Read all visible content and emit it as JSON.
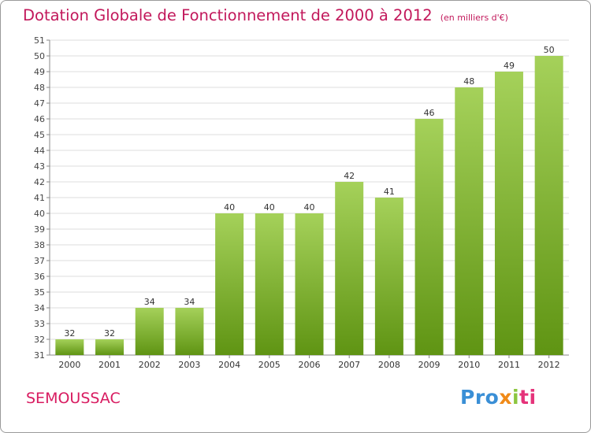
{
  "chart_data": {
    "type": "bar",
    "title": "Dotation Globale de Fonctionnement de 2000 à 2012",
    "unit_note": "(en milliers d'€)",
    "categories": [
      "2000",
      "2001",
      "2002",
      "2003",
      "2004",
      "2005",
      "2006",
      "2007",
      "2008",
      "2009",
      "2010",
      "2011",
      "2012"
    ],
    "values": [
      32,
      32,
      34,
      34,
      40,
      40,
      40,
      42,
      41,
      46,
      48,
      49,
      50
    ],
    "xlabel": "",
    "ylabel": "",
    "ylim": [
      31,
      51
    ],
    "yticks": [
      31,
      32,
      33,
      34,
      35,
      36,
      37,
      38,
      39,
      40,
      41,
      42,
      43,
      44,
      45,
      46,
      47,
      48,
      49,
      50,
      51
    ],
    "grid": true,
    "colors": {
      "bar_light": "#a5d15a",
      "bar_dark": "#5f9413",
      "grid": "#dddddd",
      "axis": "#888888",
      "title": "#c2185b"
    }
  },
  "commune": "SEMOUSSAC",
  "logo": {
    "p1": "Pro",
    "p2": "x",
    "p3": "i",
    "p4": "ti"
  }
}
